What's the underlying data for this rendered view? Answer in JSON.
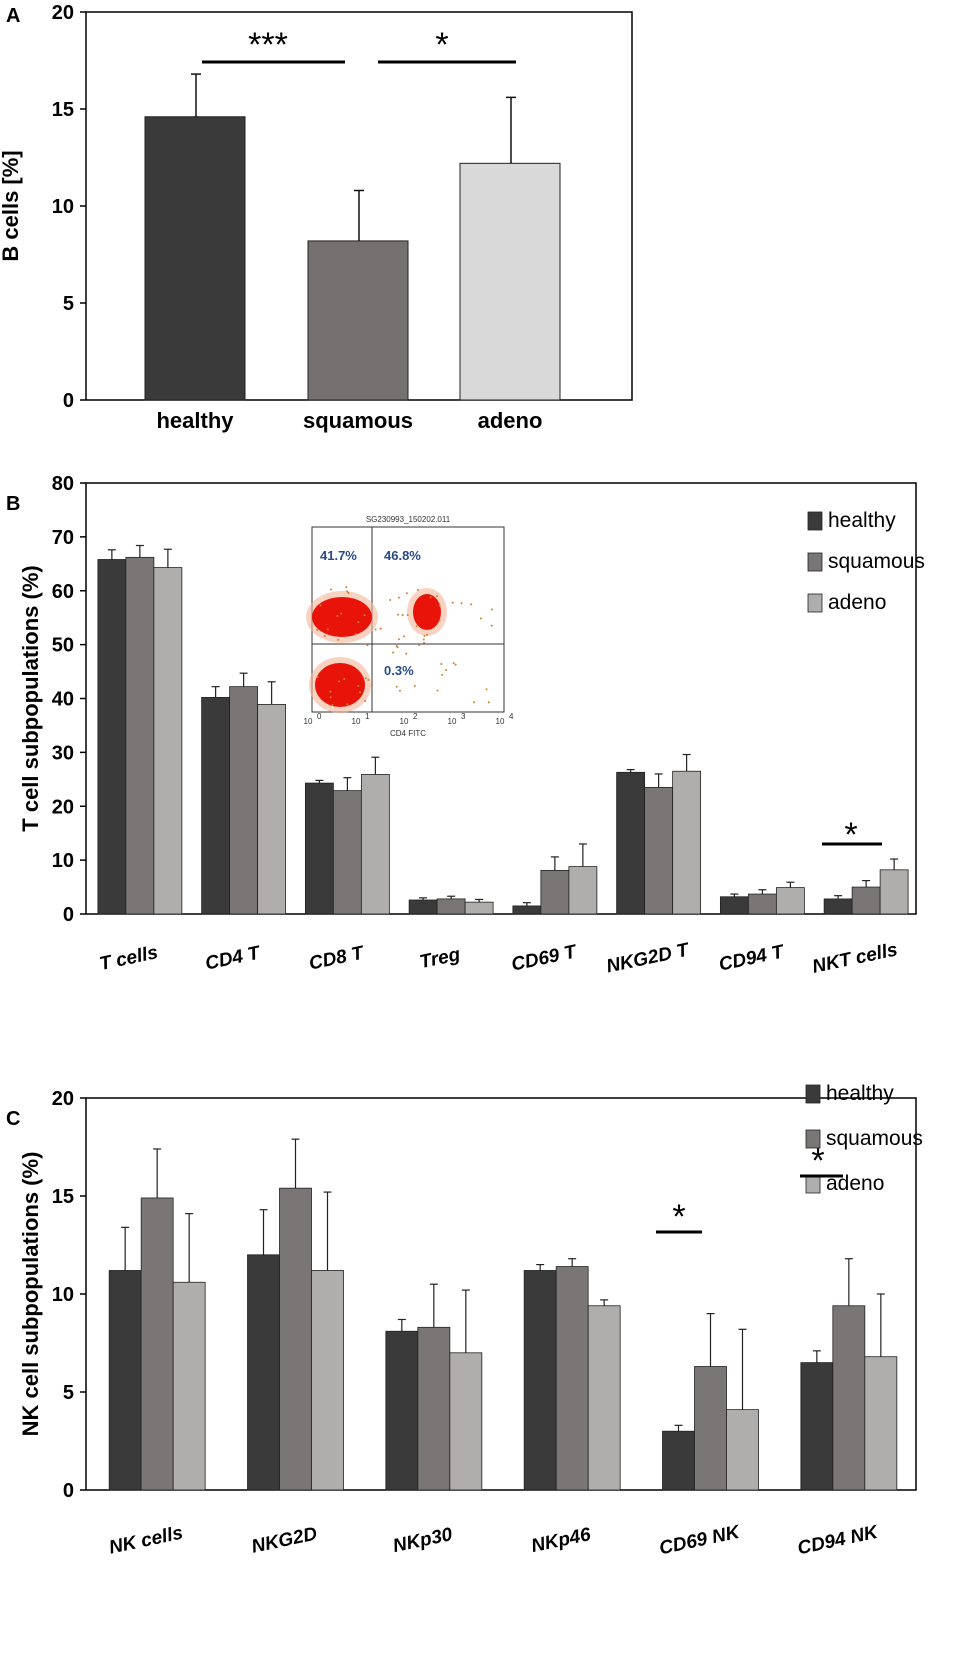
{
  "chart_data": [
    {
      "panel": "A",
      "type": "bar",
      "ylabel": "B cells [%]",
      "xlabel": "",
      "ylim": [
        0,
        20
      ],
      "yticks": [
        "0",
        "5",
        "10",
        "15",
        "20"
      ],
      "grid": false,
      "categories": [
        "healthy",
        "squamous",
        "adeno"
      ],
      "values": [
        14.6,
        8.2,
        12.2
      ],
      "errors": [
        2.2,
        2.6,
        3.4
      ],
      "colors": [
        "#3a3a3a",
        "#757171",
        "#d9d9d9"
      ],
      "significance": [
        {
          "label": "***",
          "from": 0,
          "to": 1
        },
        {
          "label": "*",
          "from": 1,
          "to": 2
        }
      ]
    },
    {
      "panel": "B",
      "type": "bar",
      "ylabel": "T cell subpopulations (%)",
      "xlabel": "",
      "ylim": [
        0,
        80
      ],
      "yticks": [
        "0",
        "10",
        "20",
        "30",
        "40",
        "50",
        "60",
        "70",
        "80"
      ],
      "grid": false,
      "legend_position": "top-right",
      "categories": [
        "T cells",
        "CD4 T",
        "CD8 T",
        "Treg",
        "CD69 T",
        "NKG2D T",
        "CD94 T",
        "NKT cells"
      ],
      "series": [
        {
          "name": "healthy",
          "color": "#3a3a3a",
          "values": [
            65.8,
            40.2,
            24.3,
            2.6,
            1.5,
            26.3,
            3.2,
            2.8
          ],
          "errors": [
            1.8,
            2.0,
            0.5,
            0.4,
            0.6,
            0.5,
            0.5,
            0.6
          ]
        },
        {
          "name": "squamous",
          "color": "#7a7676",
          "values": [
            66.2,
            42.2,
            22.9,
            2.8,
            8.1,
            23.5,
            3.7,
            5.0
          ],
          "errors": [
            2.2,
            2.5,
            2.4,
            0.5,
            2.5,
            2.5,
            0.8,
            1.2
          ]
        },
        {
          "name": "adeno",
          "color": "#b0adad",
          "values": [
            64.3,
            38.9,
            25.9,
            2.2,
            8.8,
            26.5,
            4.9,
            8.2
          ],
          "errors": [
            3.4,
            4.2,
            3.2,
            0.5,
            4.2,
            3.1,
            1.0,
            2.0
          ]
        }
      ],
      "significance": [
        {
          "label": "*",
          "category": "NKT cells"
        }
      ],
      "inset": {
        "title": "SG230993_150202.011",
        "xlabel": "CD4 FITC",
        "quadrants": [
          "41.7%",
          "46.8%",
          "0.3%"
        ],
        "xticks": [
          "10",
          "10",
          "10",
          "10",
          "10"
        ],
        "xtick_exponents": [
          "0",
          "1",
          "2",
          "3",
          "4"
        ]
      }
    },
    {
      "panel": "C",
      "type": "bar",
      "ylabel": "NK cell subpopulations (%)",
      "xlabel": "",
      "ylim": [
        0,
        20
      ],
      "yticks": [
        "0",
        "5",
        "10",
        "15",
        "20"
      ],
      "grid": false,
      "legend_position": "top-right",
      "categories": [
        "NK cells",
        "NKG2D",
        "NKp30",
        "NKp46",
        "CD69 NK",
        "CD94 NK"
      ],
      "series": [
        {
          "name": "healthy",
          "color": "#3a3a3a",
          "values": [
            11.2,
            12.0,
            8.1,
            11.2,
            3.0,
            6.5
          ],
          "errors": [
            2.2,
            2.3,
            0.6,
            0.3,
            0.3,
            0.6
          ]
        },
        {
          "name": "squamous",
          "color": "#7a7676",
          "values": [
            14.9,
            15.4,
            8.3,
            11.4,
            6.3,
            9.4
          ],
          "errors": [
            2.5,
            2.5,
            2.2,
            0.4,
            2.7,
            2.4
          ]
        },
        {
          "name": "adeno",
          "color": "#b0adad",
          "values": [
            10.6,
            11.2,
            7.0,
            9.4,
            4.1,
            6.8
          ],
          "errors": [
            3.5,
            4.0,
            3.2,
            0.3,
            4.1,
            3.2
          ]
        }
      ],
      "significance": [
        {
          "label": "*",
          "category": "CD69 NK"
        },
        {
          "label": "*",
          "category": "CD94 NK"
        }
      ]
    }
  ]
}
